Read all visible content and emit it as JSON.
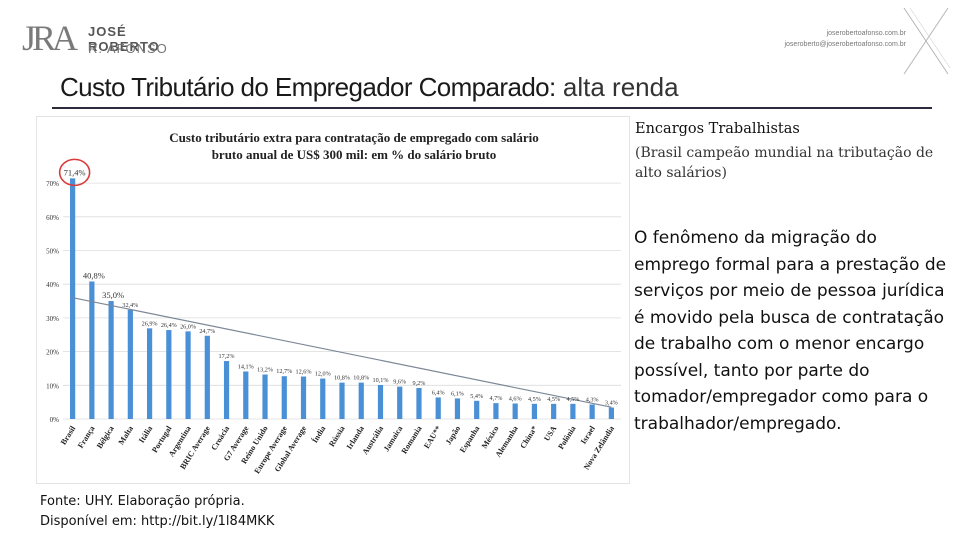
{
  "header": {
    "logo_mark": "JRA",
    "logo_name": "JOSÉ ROBERTO",
    "logo_sub": "R. AFONSO",
    "contact_web": "joserobertoafonso.com.br",
    "contact_email": "joseroberto@joserobertoafonso.com.br"
  },
  "slide": {
    "title_bold": "Custo Tributário do Empregador Comparado:",
    "title_light": " alta renda"
  },
  "side_panel": {
    "heading": "Encargos Trabalhistas",
    "subheading": "(Brasil campeão mundial na tributação de alto salários)",
    "body": "O fenômeno da migração do emprego formal para a prestação de serviços por meio de pessoa jurídica é movido pela busca de contratação de trabalho com o menor encargo possível, tanto por parte do tomador/empregador como para o trabalhador/empregado."
  },
  "source": {
    "line1": "Fonte: UHY. Elaboração própria.",
    "line2": "Disponível em: http://bit.ly/1l84MKK"
  },
  "colors": {
    "bar": "#4a90d6",
    "trend": "#7b8796",
    "highlight": "#d93a3a",
    "grid": "#dcdcdc"
  },
  "chart_data": {
    "type": "bar",
    "title_line1": "Custo tributário extra para contratação de empregado com salário",
    "title_line2": "bruto anual de US$ 300 mil: em % do salário bruto",
    "categories": [
      "Brasil",
      "França",
      "Bélgica",
      "Malta",
      "Itália",
      "Portugal",
      "Argentina",
      "BRIC Average",
      "Croácia",
      "G7 Average",
      "Reino Unido",
      "Europe Average",
      "Global Average",
      "Índia",
      "Rússia",
      "Irlanda",
      "Austrália",
      "Jamaica",
      "Romania",
      "EAU**",
      "Japão",
      "Espanha",
      "México",
      "Alemanha",
      "China*",
      "USA",
      "Polônia",
      "Israel",
      "Nova Zelândia"
    ],
    "values": [
      71.4,
      40.8,
      35.0,
      32.4,
      26.9,
      26.4,
      26.0,
      24.7,
      17.2,
      14.1,
      13.2,
      12.7,
      12.6,
      12.0,
      10.8,
      10.8,
      10.1,
      9.6,
      9.2,
      6.4,
      6.1,
      5.4,
      4.7,
      4.6,
      4.5,
      4.5,
      4.5,
      4.3,
      3.4
    ],
    "value_labels": [
      "71,4%",
      "40,8%",
      "35,0%",
      "32,4%",
      "26,9%",
      "26,4%",
      "26,0%",
      "24,7%",
      "17,2%",
      "14,1%",
      "13,2%",
      "12,7%",
      "12,6%",
      "12,0%",
      "10,8%",
      "10,8%",
      "10,1%",
      "9,6%",
      "9,2%",
      "6,4%",
      "6,1%",
      "5,4%",
      "4,7%",
      "4,6%",
      "4,5%",
      "4,5%",
      "4,5%",
      "4,3%",
      "3,4%"
    ],
    "y_ticks": [
      0,
      10,
      20,
      30,
      40,
      50,
      60,
      70
    ],
    "y_tick_labels": [
      "0%",
      "10%",
      "20%",
      "30%",
      "40%",
      "50%",
      "60%",
      "70%"
    ],
    "ylim": [
      0,
      75
    ],
    "trend_line": {
      "start": 36.0,
      "end": 3.5
    },
    "highlight_category": "Brasil",
    "legend": "none"
  }
}
